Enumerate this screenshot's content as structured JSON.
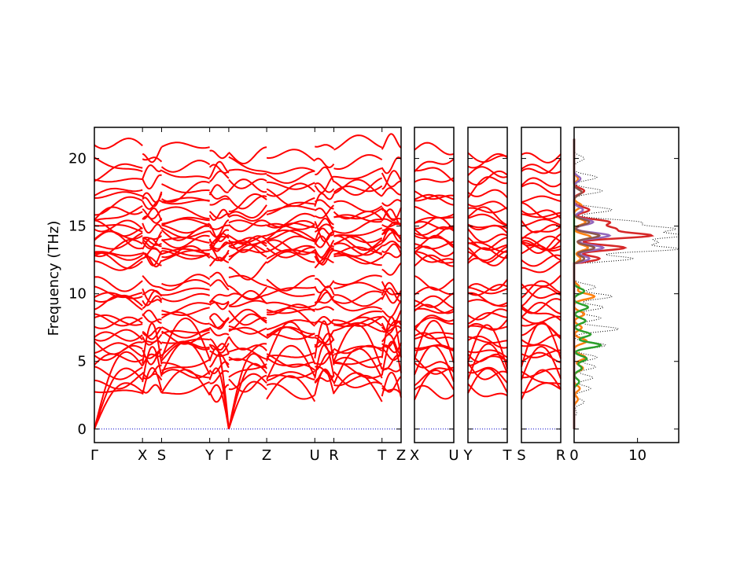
{
  "chart_data": {
    "type": "line",
    "ylabel": "Frequency (THz)",
    "ylim": [
      -1,
      22.3
    ],
    "yticks": [
      0,
      5,
      10,
      15,
      20
    ],
    "colors": {
      "bands": "#ff0000",
      "zero_line": "#0000cc",
      "axis": "#000000"
    },
    "panels": [
      {
        "id": "main",
        "labels": [
          "Γ",
          "X",
          "S",
          "Y",
          "Γ",
          "Z",
          "U",
          "R",
          "T",
          "Z"
        ],
        "segments": [
          {
            "from": "Γ",
            "to": "X",
            "len": 0.179
          },
          {
            "from": "X",
            "to": "S",
            "len": 0.071
          },
          {
            "from": "S",
            "to": "Y",
            "len": 0.179
          },
          {
            "from": "Y",
            "to": "Γ",
            "len": 0.071
          },
          {
            "from": "Γ",
            "to": "Z",
            "len": 0.141
          },
          {
            "from": "Z",
            "to": "U",
            "len": 0.179
          },
          {
            "from": "U",
            "to": "R",
            "len": 0.071
          },
          {
            "from": "R",
            "to": "T",
            "len": 0.179
          },
          {
            "from": "T",
            "to": "Z",
            "len": 0.071
          }
        ]
      },
      {
        "id": "X-U",
        "labels": [
          "X",
          "U"
        ],
        "segments": [
          {
            "from": "X",
            "to": "U",
            "len": 0.141
          }
        ]
      },
      {
        "id": "Y-T",
        "labels": [
          "Y",
          "T"
        ],
        "segments": [
          {
            "from": "Y",
            "to": "T",
            "len": 0.141
          }
        ]
      },
      {
        "id": "S-R",
        "labels": [
          "S",
          "R"
        ],
        "segments": [
          {
            "from": "S",
            "to": "R",
            "len": 0.141
          }
        ]
      }
    ],
    "dos": {
      "xlim": [
        0,
        16.5
      ],
      "xticks": [
        0,
        10
      ],
      "series": [
        {
          "color": "#000000",
          "style": "dotted",
          "peaks": [
            [
              1.2,
              0.4
            ],
            [
              2.0,
              1.6
            ],
            [
              3.0,
              2.6
            ],
            [
              3.8,
              3.0
            ],
            [
              4.6,
              3.4
            ],
            [
              5.3,
              3.6
            ],
            [
              6.2,
              5.0
            ],
            [
              7.4,
              7.0
            ],
            [
              8.2,
              4.2
            ],
            [
              9.0,
              4.6
            ],
            [
              9.8,
              6.0
            ],
            [
              10.5,
              3.4
            ],
            [
              12.6,
              9.2
            ],
            [
              13.3,
              16.0
            ],
            [
              13.8,
              12.0
            ],
            [
              14.3,
              16.4
            ],
            [
              14.8,
              15.0
            ],
            [
              15.3,
              10.0
            ],
            [
              16.2,
              6.0
            ],
            [
              17.6,
              4.4
            ],
            [
              18.6,
              3.6
            ],
            [
              20.0,
              1.6
            ]
          ]
        },
        {
          "color": "#ff7f0e",
          "style": "solid",
          "peaks": [
            [
              2.2,
              0.6
            ],
            [
              3.0,
              0.9
            ],
            [
              4.5,
              1.4
            ],
            [
              5.3,
              1.8
            ],
            [
              6.5,
              2.0
            ],
            [
              7.5,
              1.2
            ],
            [
              8.5,
              1.6
            ],
            [
              9.8,
              3.2
            ],
            [
              10.5,
              0.8
            ],
            [
              12.6,
              1.0
            ],
            [
              13.4,
              2.2
            ],
            [
              14.2,
              2.6
            ],
            [
              15.3,
              1.8
            ],
            [
              16.5,
              1.2
            ],
            [
              18.5,
              0.6
            ]
          ]
        },
        {
          "color": "#2ca02c",
          "style": "solid",
          "peaks": [
            [
              3.5,
              0.8
            ],
            [
              4.5,
              1.2
            ],
            [
              5.2,
              2.0
            ],
            [
              6.2,
              4.2
            ],
            [
              7.0,
              2.6
            ],
            [
              8.0,
              1.8
            ],
            [
              9.0,
              2.2
            ],
            [
              10.2,
              1.6
            ]
          ]
        },
        {
          "color": "#d62728",
          "style": "solid",
          "peaks": [
            [
              12.6,
              4.0
            ],
            [
              13.4,
              8.0
            ],
            [
              14.3,
              12.0
            ],
            [
              14.8,
              6.0
            ],
            [
              15.3,
              5.4
            ],
            [
              16.2,
              2.4
            ],
            [
              17.6,
              1.6
            ]
          ]
        },
        {
          "color": "#9467bd",
          "style": "solid",
          "peaks": [
            [
              12.6,
              2.4
            ],
            [
              13.4,
              4.6
            ],
            [
              14.3,
              5.6
            ],
            [
              15.3,
              3.0
            ],
            [
              16.2,
              1.4
            ],
            [
              18.5,
              1.0
            ]
          ]
        },
        {
          "color": "#8c564b",
          "style": "solid",
          "peaks": [
            [
              12.6,
              1.6
            ],
            [
              13.4,
              3.2
            ],
            [
              14.3,
              4.0
            ],
            [
              15.3,
              2.4
            ],
            [
              17.5,
              1.2
            ]
          ]
        }
      ]
    }
  }
}
